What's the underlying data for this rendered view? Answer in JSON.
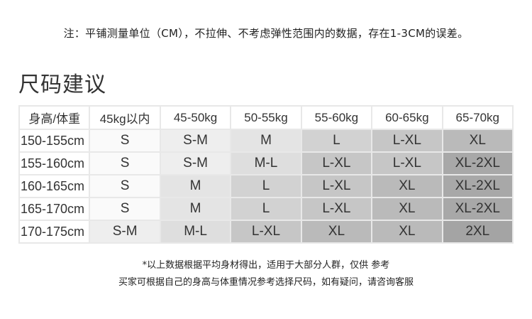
{
  "note": "注：平铺测量单位（CM），不拉伸、不考虑弹性范围内的数据，存在1-3CM的误差。",
  "title": "尺码建议",
  "table": {
    "headers": [
      "身高/体重",
      "45kg以内",
      "45-50kg",
      "50-55kg",
      "55-60kg",
      "60-65kg",
      "65-70kg"
    ],
    "rows": [
      {
        "height": "150-155cm",
        "sizes": [
          "S",
          "S-M",
          "M",
          "L",
          "L-XL",
          "XL"
        ]
      },
      {
        "height": "155-160cm",
        "sizes": [
          "S",
          "S-M",
          "M-L",
          "L-XL",
          "L-XL",
          "XL-2XL"
        ]
      },
      {
        "height": "160-165cm",
        "sizes": [
          "S",
          "M",
          "L",
          "L-XL",
          "XL",
          "XL-2XL"
        ]
      },
      {
        "height": "165-170cm",
        "sizes": [
          "S",
          "M",
          "L",
          "L-XL",
          "XL",
          "XL-2XL"
        ]
      },
      {
        "height": "170-175cm",
        "sizes": [
          "S-M",
          "M-L",
          "L-XL",
          "XL",
          "XL",
          "2XL"
        ]
      }
    ],
    "size_colors": {
      "S": "#fafafa",
      "S-M": "#eeeeee",
      "M": "#e4e4e4",
      "M-L": "#dedede",
      "L": "#d2d2d2",
      "L-XL": "#c6c6c6",
      "XL": "#bababa",
      "XL-2XL": "#a8a8a8",
      "2XL": "#a4a4a4"
    }
  },
  "footnotes": [
    "*以上数据根据平均身材得出，适用于大部分人群，仅供 参考",
    "买家可根据自己的身高与体重情况参考选择尺码，如有疑问，请咨询客服"
  ]
}
